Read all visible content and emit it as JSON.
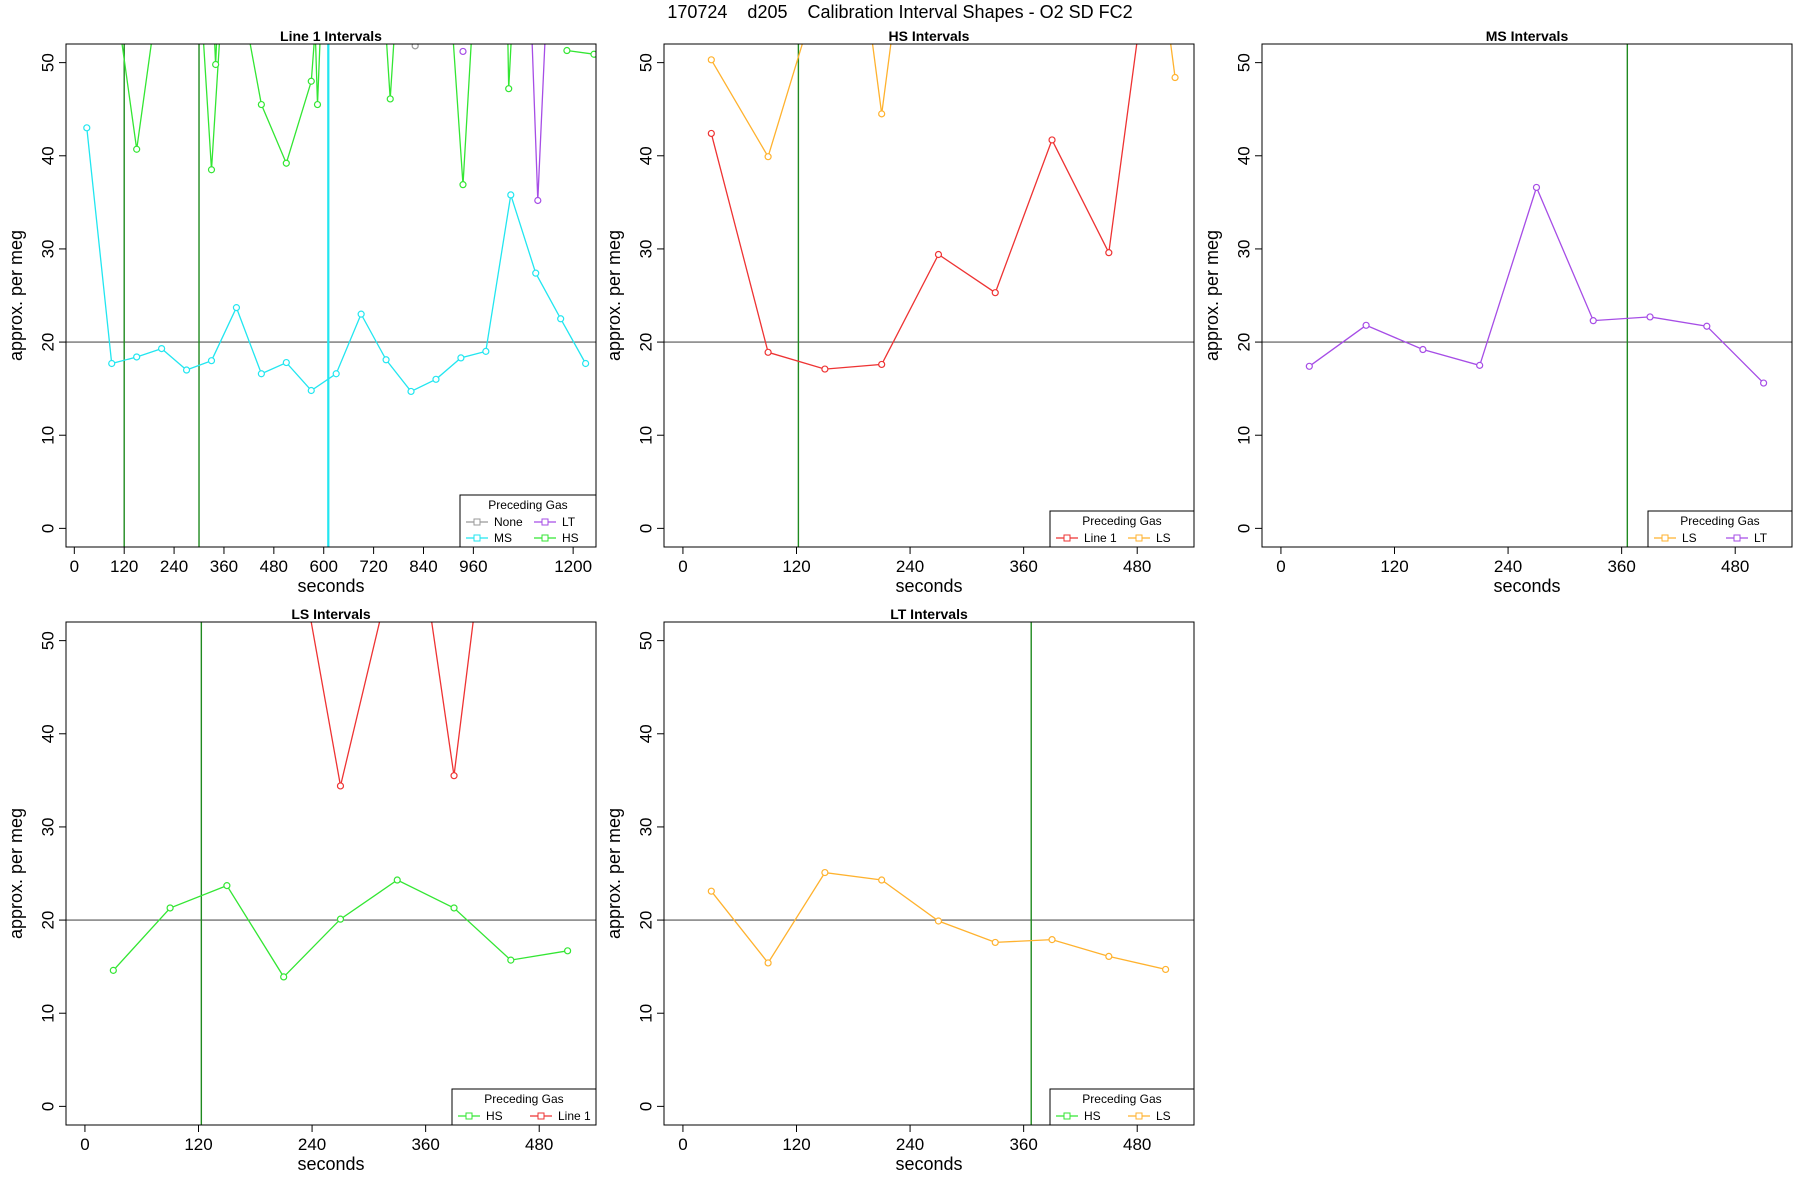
{
  "figure": {
    "title": "170724    d205    Calibration Interval Shapes - O2 SD FC2"
  },
  "colors": {
    "None": "#999999",
    "MS": "#22e6f0",
    "LT": "#a64de6",
    "HS": "#33e633",
    "LS": "#ffb22e",
    "Line 1": "#ee3333",
    "vline_green": "#1f8a1f",
    "vline_cyan": "#22e6f0",
    "hline": "#555555"
  },
  "chart_data": [
    {
      "type": "line",
      "title": "Line 1 Intervals",
      "xlabel": "seconds",
      "ylabel": "approx. per meg",
      "xlim": [
        -20,
        1255
      ],
      "ylim": [
        -2,
        52
      ],
      "xticks": [
        0,
        120,
        240,
        360,
        480,
        600,
        720,
        840,
        960,
        1200
      ],
      "yticks": [
        0,
        10,
        20,
        30,
        40,
        50
      ],
      "hline": 20,
      "vlines": [
        {
          "x": 120,
          "color": "green"
        },
        {
          "x": 300,
          "color": "green"
        },
        {
          "x": 610,
          "color": "cyan"
        },
        {
          "x": 612,
          "color": "cyan"
        }
      ],
      "legend": {
        "title": "Preceding Gas",
        "position": "bottom-right",
        "cols": 2,
        "entries": [
          "None",
          "LT",
          "MS",
          "HS"
        ]
      },
      "series": [
        {
          "name": "MS",
          "points": [
            [
              30,
              43
            ],
            [
              90,
              17.7
            ],
            [
              150,
              18.4
            ],
            [
              210,
              19.3
            ],
            [
              270,
              17
            ],
            [
              330,
              18
            ],
            [
              390,
              23.7
            ],
            [
              450,
              16.6
            ],
            [
              510,
              17.8
            ],
            [
              570,
              14.8
            ],
            [
              630,
              16.6
            ],
            [
              690,
              23
            ],
            [
              750,
              18.1
            ],
            [
              810,
              14.7
            ],
            [
              870,
              16
            ],
            [
              930,
              18.3
            ],
            [
              990,
              19
            ],
            [
              1050,
              35.8
            ],
            [
              1110,
              27.4
            ],
            [
              1170,
              22.5
            ],
            [
              1230,
              17.7
            ]
          ]
        },
        {
          "name": "HS",
          "points": [
            [
              90,
              60
            ],
            [
              150,
              40.7
            ],
            [
              210,
              60
            ]
          ]
        },
        {
          "name": "HS",
          "points": [
            [
              300,
              60
            ],
            [
              330,
              38.5
            ],
            [
              360,
              60
            ]
          ]
        },
        {
          "name": "HS",
          "points": [
            [
              330,
              60
            ],
            [
              340,
              49.8
            ],
            [
              350,
              60
            ]
          ]
        },
        {
          "name": "HS",
          "points": [
            [
              390,
              60
            ],
            [
              450,
              45.5
            ],
            [
              510,
              39.2
            ],
            [
              570,
              48
            ],
            [
              590,
              60
            ]
          ]
        },
        {
          "name": "HS",
          "points": [
            [
              575,
              60
            ],
            [
              585,
              45.5
            ],
            [
              598,
              60
            ]
          ]
        },
        {
          "name": "HS",
          "points": [
            [
              740,
              60
            ],
            [
              760,
              46.1
            ],
            [
              780,
              60
            ]
          ]
        },
        {
          "name": "HS",
          "points": [
            [
              900,
              60
            ],
            [
              935,
              36.9
            ],
            [
              965,
              60
            ]
          ]
        },
        {
          "name": "HS",
          "points": [
            [
              1040,
              60
            ],
            [
              1045,
              47.2
            ],
            [
              1060,
              60
            ]
          ]
        },
        {
          "name": "HS",
          "points": [
            [
              1185,
              51.3
            ],
            [
              1250,
              50.9
            ]
          ]
        },
        {
          "name": "LT",
          "points": [
            [
              935,
              51.2
            ]
          ]
        },
        {
          "name": "LT",
          "points": [
            [
              1095,
              60
            ],
            [
              1115,
              35.2
            ],
            [
              1140,
              60
            ]
          ]
        },
        {
          "name": "None",
          "points": [
            [
              820,
              51.8
            ]
          ]
        }
      ]
    },
    {
      "type": "line",
      "title": "HS Intervals",
      "xlabel": "seconds",
      "ylabel": "approx. per meg",
      "xlim": [
        -20,
        540
      ],
      "ylim": [
        -2,
        52
      ],
      "xticks": [
        0,
        120,
        240,
        360,
        480
      ],
      "yticks": [
        0,
        10,
        20,
        30,
        40,
        50
      ],
      "hline": 20,
      "vlines": [
        {
          "x": 122,
          "color": "green"
        }
      ],
      "legend": {
        "title": "Preceding Gas",
        "position": "bottom-right",
        "cols": 2,
        "entries": [
          "Line 1",
          "LS"
        ]
      },
      "series": [
        {
          "name": "Line 1",
          "points": [
            [
              30,
              42.4
            ],
            [
              90,
              18.9
            ],
            [
              150,
              17.1
            ],
            [
              210,
              17.6
            ],
            [
              270,
              29.4
            ],
            [
              330,
              25.3
            ],
            [
              390,
              41.7
            ],
            [
              450,
              29.6
            ],
            [
              490,
              60
            ]
          ]
        },
        {
          "name": "LS",
          "points": [
            [
              30,
              50.3
            ],
            [
              90,
              39.9
            ],
            [
              150,
              60
            ]
          ]
        },
        {
          "name": "LS",
          "points": [
            [
              190,
              60
            ],
            [
              210,
              44.5
            ],
            [
              230,
              60
            ]
          ]
        },
        {
          "name": "LS",
          "points": [
            [
              505,
              60
            ],
            [
              520,
              48.4
            ]
          ]
        }
      ]
    },
    {
      "type": "line",
      "title": "MS Intervals",
      "xlabel": "seconds",
      "ylabel": "approx. per meg",
      "xlim": [
        -20,
        540
      ],
      "ylim": [
        -2,
        52
      ],
      "xticks": [
        0,
        120,
        240,
        360,
        480
      ],
      "yticks": [
        0,
        10,
        20,
        30,
        40,
        50
      ],
      "hline": 20,
      "vlines": [
        {
          "x": 366,
          "color": "green"
        }
      ],
      "legend": {
        "title": "Preceding Gas",
        "position": "bottom-right",
        "cols": 2,
        "entries": [
          "LS",
          "LT"
        ]
      },
      "series": [
        {
          "name": "LT",
          "points": [
            [
              30,
              17.4
            ],
            [
              90,
              21.8
            ],
            [
              150,
              19.2
            ],
            [
              210,
              17.5
            ],
            [
              270,
              36.6
            ],
            [
              330,
              22.3
            ],
            [
              390,
              22.7
            ],
            [
              450,
              21.7
            ],
            [
              510,
              15.6
            ]
          ]
        }
      ]
    },
    {
      "type": "line",
      "title": "LS Intervals",
      "xlabel": "seconds",
      "ylabel": "approx. per meg",
      "xlim": [
        -20,
        540
      ],
      "ylim": [
        -2,
        52
      ],
      "xticks": [
        0,
        120,
        240,
        360,
        480
      ],
      "yticks": [
        0,
        10,
        20,
        30,
        40,
        50
      ],
      "hline": 20,
      "vlines": [
        {
          "x": 123,
          "color": "green"
        }
      ],
      "legend": {
        "title": "Preceding Gas",
        "position": "bottom-right",
        "cols": 2,
        "entries": [
          "HS",
          "Line 1"
        ]
      },
      "series": [
        {
          "name": "HS",
          "points": [
            [
              30,
              14.6
            ],
            [
              90,
              21.3
            ],
            [
              150,
              23.7
            ],
            [
              210,
              13.9
            ],
            [
              270,
              20.1
            ],
            [
              330,
              24.3
            ],
            [
              390,
              21.3
            ],
            [
              450,
              15.7
            ],
            [
              510,
              16.7
            ]
          ]
        },
        {
          "name": "Line 1",
          "points": [
            [
              225,
              60
            ],
            [
              270,
              34.4
            ],
            [
              330,
              60
            ]
          ]
        },
        {
          "name": "Line 1",
          "points": [
            [
              355,
              60
            ],
            [
              390,
              35.5
            ],
            [
              420,
              60
            ]
          ]
        }
      ]
    },
    {
      "type": "line",
      "title": "LT Intervals",
      "xlabel": "seconds",
      "ylabel": "approx. per meg",
      "xlim": [
        -20,
        540
      ],
      "ylim": [
        -2,
        52
      ],
      "xticks": [
        0,
        120,
        240,
        360,
        480
      ],
      "yticks": [
        0,
        10,
        20,
        30,
        40,
        50
      ],
      "hline": 20,
      "vlines": [
        {
          "x": 368,
          "color": "green"
        }
      ],
      "legend": {
        "title": "Preceding Gas",
        "position": "bottom-right",
        "cols": 2,
        "entries": [
          "HS",
          "LS"
        ]
      },
      "series": [
        {
          "name": "LS",
          "points": [
            [
              30,
              23.1
            ],
            [
              90,
              15.4
            ],
            [
              150,
              25.1
            ],
            [
              210,
              24.3
            ],
            [
              270,
              19.9
            ],
            [
              330,
              17.6
            ],
            [
              390,
              17.9
            ],
            [
              450,
              16.1
            ],
            [
              510,
              14.7
            ]
          ]
        }
      ]
    }
  ]
}
